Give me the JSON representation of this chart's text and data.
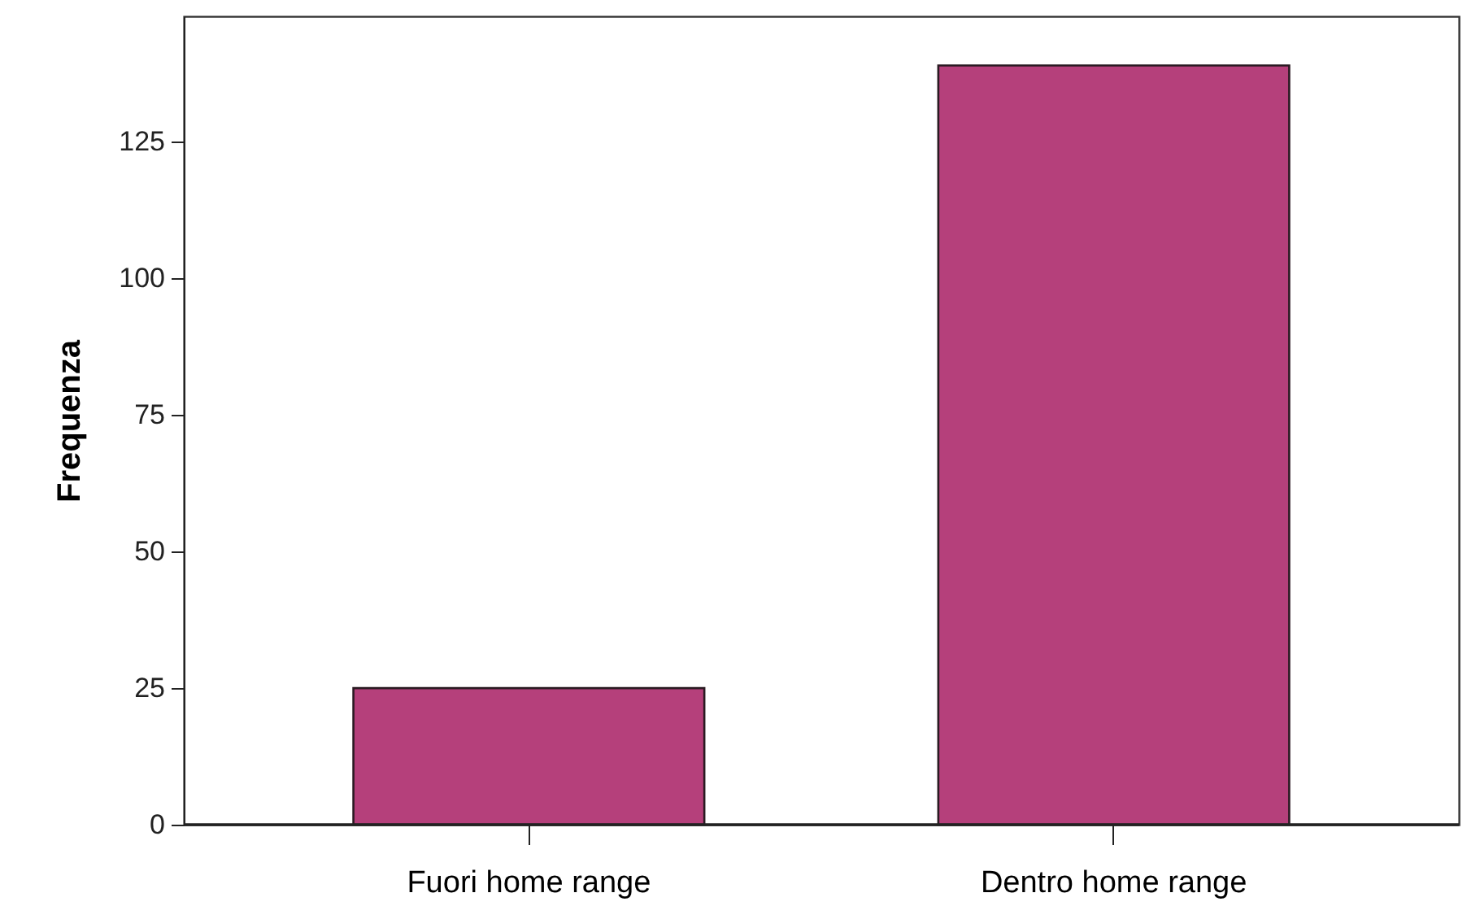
{
  "chart_data": {
    "type": "bar",
    "ylabel": "Frequenza",
    "categories": [
      "Fuori home range",
      "Dentro home range"
    ],
    "values": [
      25,
      139
    ],
    "color": "#b5407b",
    "ylim": [
      0,
      148
    ],
    "yticks": [
      0,
      25,
      50,
      75,
      100,
      125
    ],
    "grid": false
  }
}
